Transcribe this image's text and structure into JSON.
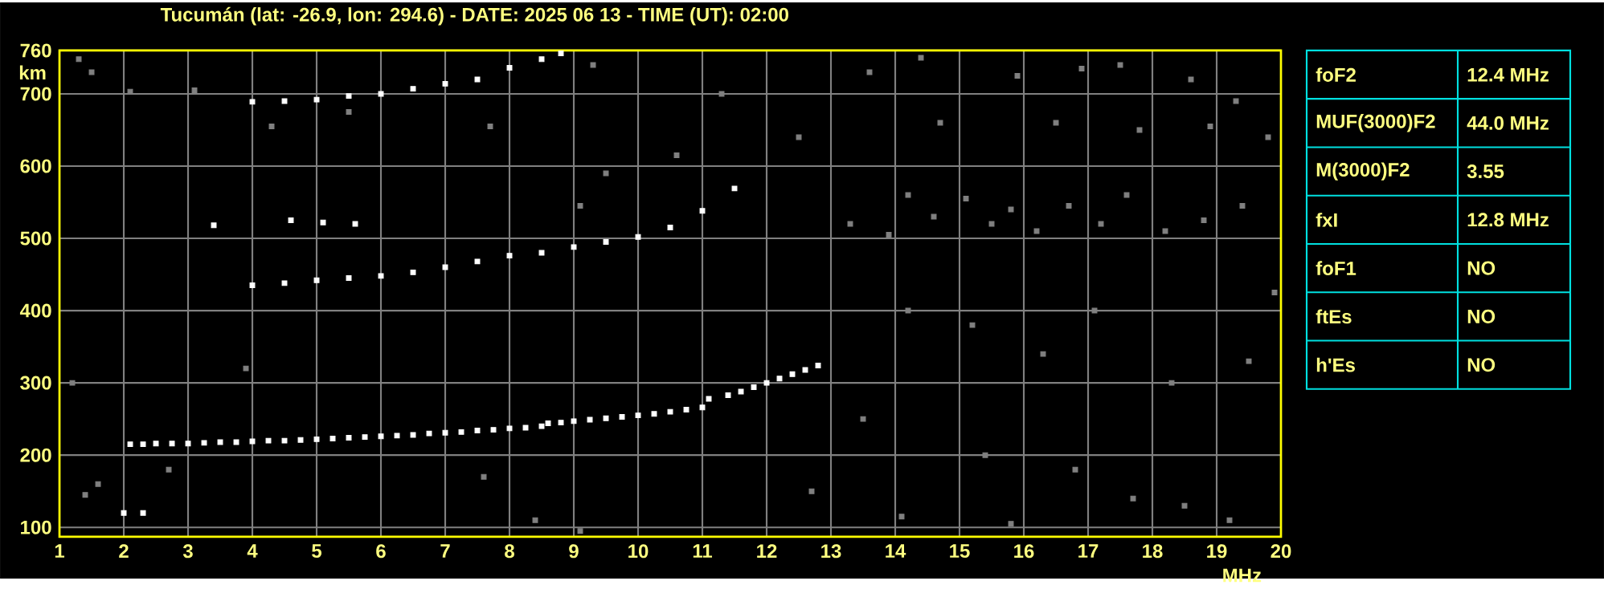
{
  "chart_data": [
    {
      "type": "scatter",
      "title": "Tucumán (lat: -26.9, lon: 294.6) - DATE: 2025 06 13 - TIME (UT): 02:00",
      "xlabel": "MHz",
      "ylabel": "km",
      "xlim": [
        1,
        20
      ],
      "ylim": [
        87,
        760
      ],
      "xticks": [
        1,
        2,
        3,
        4,
        5,
        6,
        7,
        8,
        9,
        10,
        11,
        12,
        13,
        14,
        15,
        16,
        17,
        18,
        19,
        20
      ],
      "yticks": [
        100,
        200,
        300,
        400,
        500,
        600,
        700,
        760
      ],
      "grid": true,
      "marker": "square",
      "series": [
        {
          "color": "#ffffff",
          "x": [
            2.1,
            2.3,
            2.5,
            2.75,
            3.0,
            3.25,
            3.5,
            3.75,
            4.0,
            4.25,
            4.5,
            4.75,
            5.0,
            5.25,
            5.5,
            5.75,
            6.0,
            6.25,
            6.5,
            6.75,
            7.0,
            7.25,
            7.5,
            7.75,
            8.0,
            8.25,
            8.5,
            8.6,
            8.8,
            9.0,
            9.25,
            9.5,
            9.75,
            10.0,
            10.25,
            10.5,
            10.75,
            11.0,
            11.1,
            11.4,
            11.6,
            11.8,
            12.0,
            12.2,
            12.4,
            12.6,
            12.8
          ],
          "values": [
            215,
            215,
            216,
            216,
            216,
            217,
            218,
            218,
            219,
            220,
            220,
            221,
            222,
            223,
            224,
            225,
            226,
            227,
            228,
            230,
            231,
            232,
            234,
            235,
            237,
            238,
            240,
            244,
            245,
            247,
            249,
            251,
            253,
            255,
            257,
            260,
            263,
            266,
            278,
            283,
            288,
            294,
            300,
            306,
            312,
            318,
            324
          ]
        },
        {
          "color": "#ffffff",
          "x": [
            4.0,
            4.5,
            5.0,
            5.5,
            6.0,
            6.5,
            7.0,
            7.5,
            8.0,
            8.5,
            9.0,
            9.5,
            10.0,
            10.5,
            11.0,
            11.5
          ],
          "values": [
            435,
            438,
            442,
            445,
            448,
            453,
            460,
            468,
            476,
            480,
            488,
            495,
            502,
            515,
            538,
            569
          ]
        },
        {
          "color": "#ffffff",
          "x": [
            4.0,
            4.5,
            5.0,
            5.5,
            6.0,
            6.5,
            7.0,
            7.5,
            8.0,
            8.5,
            8.8
          ],
          "values": [
            689,
            690,
            692,
            697,
            700,
            707,
            714,
            720,
            736,
            748,
            756
          ]
        },
        {
          "color": "#ffffff",
          "x": [
            2.0,
            2.3,
            3.4,
            4.6,
            5.1,
            5.6
          ],
          "values": [
            120,
            120,
            518,
            525,
            522,
            520
          ]
        },
        {
          "color": "#808080",
          "x": [
            1.5,
            1.3,
            2.1,
            3.1,
            4.3,
            5.5,
            7.7,
            9.3,
            9.1,
            9.5,
            10.6,
            11.3,
            12.5,
            13.3,
            13.9,
            14.2,
            14.6,
            15.1,
            15.5,
            15.8,
            16.2,
            16.7,
            17.2,
            17.6,
            18.2,
            18.8,
            19.4,
            13.6,
            14.4,
            15.9,
            16.9,
            17.5,
            18.6,
            19.3,
            19.8,
            14.7,
            16.5,
            17.8,
            18.9,
            14.2,
            15.2,
            16.3,
            17.1,
            18.3,
            19.5,
            13.5,
            15.4,
            16.8,
            17.7,
            18.5,
            19.2,
            14.1,
            15.8,
            12.7,
            7.6,
            8.4,
            1.6,
            1.4,
            2.7,
            3.9,
            1.2,
            9.1,
            19.9
          ],
          "values": [
            730,
            748,
            703,
            705,
            655,
            675,
            655,
            740,
            545,
            590,
            615,
            700,
            640,
            520,
            505,
            560,
            530,
            555,
            520,
            540,
            510,
            545,
            520,
            560,
            510,
            525,
            545,
            730,
            750,
            725,
            735,
            740,
            720,
            690,
            640,
            660,
            660,
            650,
            655,
            400,
            380,
            340,
            400,
            300,
            330,
            250,
            200,
            180,
            140,
            130,
            110,
            115,
            105,
            150,
            170,
            110,
            160,
            145,
            180,
            320,
            300,
            95,
            425
          ]
        }
      ]
    },
    {
      "type": "other",
      "annotations": [
        "foF2",
        "12.4 MHz",
        "MUF(3000)F2",
        "44.0 MHz",
        "M(3000)F2",
        "3.55",
        "fxI",
        "12.8 MHz",
        "foF1",
        "NO",
        "ftEs",
        "NO",
        "h'Es",
        "NO"
      ]
    }
  ]
}
